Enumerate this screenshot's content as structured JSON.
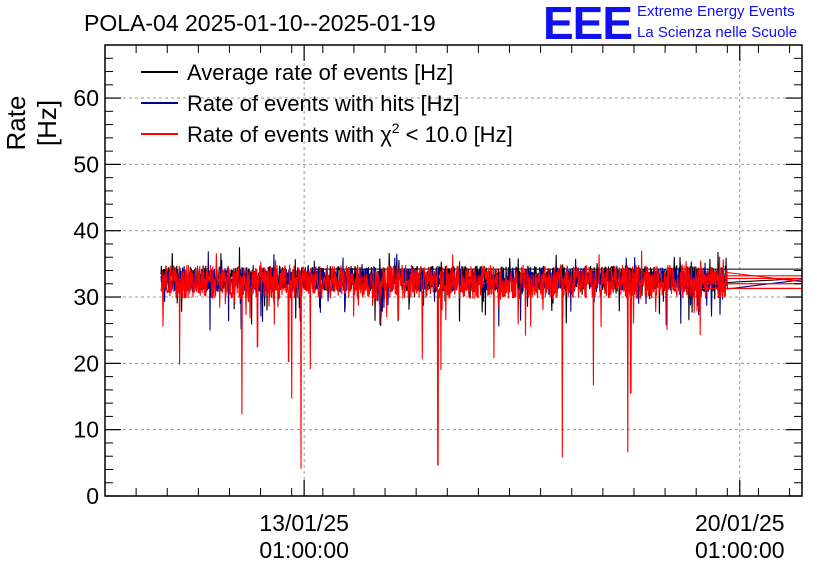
{
  "chart_data": {
    "type": "line",
    "title": "POLA-04 2025-01-10--2025-01-19",
    "xlabel": "",
    "ylabel": "Rate [Hz]",
    "ylim": [
      0,
      68
    ],
    "yticks": [
      0,
      10,
      20,
      30,
      40,
      50,
      60
    ],
    "xlim_days": [
      0,
      11.2
    ],
    "xticks": [
      {
        "day": 3.2,
        "date": "13/01/25",
        "time": "01:00:00"
      },
      {
        "day": 10.2,
        "date": "20/01/25",
        "time": "01:00:00"
      }
    ],
    "grid": true,
    "legend_position": "top-left",
    "series": [
      {
        "name": "Average rate of events [Hz]",
        "color": "#000000",
        "base": 32.8,
        "noise": 1.2
      },
      {
        "name": "Rate of events with hits [Hz]",
        "color": "#00008b",
        "base": 32.6,
        "noise": 1.2
      },
      {
        "name": "Rate of events with χ² < 10.0 [Hz]",
        "color": "#ff0000",
        "base": 32.3,
        "noise": 1.6,
        "start_day": 0.9,
        "end_day": 10.0,
        "flat_to_day": 11.2,
        "flat_value": 32.3,
        "dips": [
          {
            "day": 1.2,
            "value": 19.8
          },
          {
            "day": 2.2,
            "value": 12.3
          },
          {
            "day": 2.45,
            "value": 22.5
          },
          {
            "day": 2.95,
            "value": 20.3
          },
          {
            "day": 3.0,
            "value": 14.7
          },
          {
            "day": 3.15,
            "value": 4.1
          },
          {
            "day": 3.3,
            "value": 19.1
          },
          {
            "day": 5.1,
            "value": 20.6
          },
          {
            "day": 5.35,
            "value": 4.7
          },
          {
            "day": 5.4,
            "value": 19.0
          },
          {
            "day": 6.25,
            "value": 20.8
          },
          {
            "day": 7.35,
            "value": 5.8
          },
          {
            "day": 7.85,
            "value": 16.7
          },
          {
            "day": 8.4,
            "value": 6.6
          },
          {
            "day": 8.45,
            "value": 15.5
          }
        ]
      }
    ]
  },
  "logo": {
    "text": "EEE",
    "line1": "Extreme Energy Events",
    "line2": "La Scienza nelle Scuole"
  },
  "legend": {
    "item1": "Average rate of events [Hz]",
    "item2": "Rate of events with hits [Hz]",
    "item3_prefix": "Rate of events with χ",
    "item3_sup": "2",
    "item3_suffix": " < 10.0 [Hz]"
  },
  "colors": {
    "black": "#000000",
    "navy": "#00008b",
    "red": "#ff0000",
    "grid": "#9a9a9a",
    "logo": "#1010f0"
  }
}
